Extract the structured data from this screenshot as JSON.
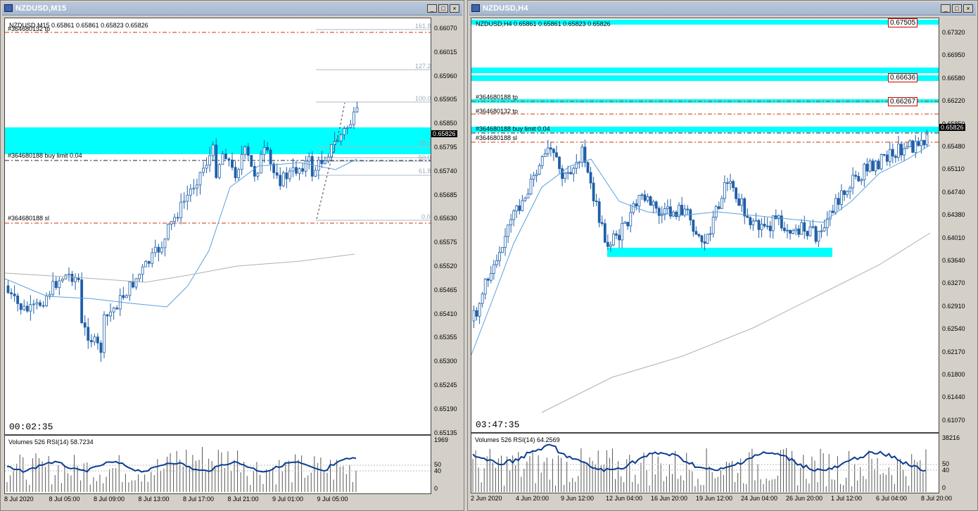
{
  "colors": {
    "bull": "#1f5fa8",
    "zone": "#00ffff",
    "sl": "#cc3300",
    "ma_fast": "#5aa0dc",
    "ma_slow": "#b0b0b0",
    "rsi": "#0b3d91"
  },
  "left": {
    "title": "NZDUSD,M15",
    "header_info": "NZDUSD,M15  0.65861 0.65861 0.65823 0.65826",
    "header_overlay": "#364680132 tp",
    "buy_limit_label": "#364680188 buy limit 0.04",
    "sl_label": "#364680188 sl",
    "fib_labels": [
      "161.8",
      "127.2",
      "100.0",
      "38.2",
      "50.0",
      "61.8",
      "0.0"
    ],
    "current_price": "0.65826",
    "timer": "00:02:35",
    "indicator_label": "Volumes 526  RSI(14) 58.7234",
    "ind_ticks": [
      "1969",
      "50",
      "40",
      "0"
    ],
    "price_ticks": [
      "0.66070",
      "0.66015",
      "0.65960",
      "0.65905",
      "0.65850",
      "0.65795",
      "0.65740",
      "0.65685",
      "0.65630",
      "0.65575",
      "0.65520",
      "0.65465",
      "0.65410",
      "0.65355",
      "0.65300",
      "0.65245",
      "0.65190",
      "0.65135"
    ],
    "time_ticks": [
      "8 Jul 2020",
      "8 Jul 05:00",
      "8 Jul 09:00",
      "8 Jul 13:00",
      "8 Jul 17:00",
      "8 Jul 21:00",
      "9 Jul 01:00",
      "9 Jul 05:00"
    ],
    "window_buttons": [
      "_",
      "□",
      "×"
    ]
  },
  "right": {
    "title": "NZDUSD,H4",
    "header_info": "NZDUSD,H4  0.65861 0.65861 0.65823 0.65826",
    "tp1_label": "#364680188 tp",
    "tp2_label": "#364680132 tp",
    "buy_limit_label": "#364680188 buy limit 0.04",
    "sl_label": "#364680188 sl",
    "level_boxes": [
      "0.67505",
      "0.66636",
      "0.66267"
    ],
    "current_price": "0.65826",
    "timer": "03:47:35",
    "indicator_label": "Volumes 526  RSI(14) 64.2569",
    "ind_ticks": [
      "38216",
      "50",
      "40",
      "0"
    ],
    "price_ticks": [
      "0.67320",
      "0.66950",
      "0.66580",
      "0.66220",
      "0.65850",
      "0.65480",
      "0.65110",
      "0.64740",
      "0.64380",
      "0.64010",
      "0.63640",
      "0.63270",
      "0.62910",
      "0.62540",
      "0.62170",
      "0.61800",
      "0.61440",
      "0.61070"
    ],
    "time_ticks": [
      "2 Jun 2020",
      "4 Jun 20:00",
      "9 Jun 12:00",
      "12 Jun 04:00",
      "16 Jun 20:00",
      "19 Jun 12:00",
      "24 Jun 04:00",
      "26 Jun 20:00",
      "1 Jul 12:00",
      "6 Jul 04:00",
      "8 Jul 20:00"
    ],
    "window_buttons": [
      "_",
      "□",
      "×"
    ]
  }
}
